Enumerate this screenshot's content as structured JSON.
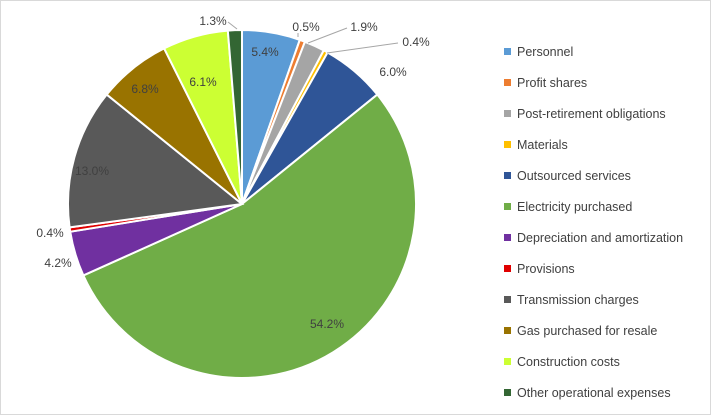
{
  "chart_data": {
    "type": "pie",
    "title": "",
    "legend_position": "right",
    "labels": [
      "Personnel",
      "Profit shares",
      "Post-retirement obligations",
      "Materials",
      "Outsourced services",
      "Electricity purchased",
      "Depreciation and amortization",
      "Provisions",
      "Transmission charges",
      "Gas purchased for resale",
      "Construction costs",
      "Other operational expenses"
    ],
    "values": [
      5.4,
      0.5,
      1.9,
      0.4,
      6.0,
      54.2,
      4.2,
      0.4,
      13.0,
      6.8,
      6.1,
      1.3
    ],
    "value_labels": [
      "5.4%",
      "0.5%",
      "1.9%",
      "0.4%",
      "6.0%",
      "54.2%",
      "4.2%",
      "0.4%",
      "13.0%",
      "6.8%",
      "6.1%",
      "1.3%"
    ],
    "colors": [
      "#5b9bd5",
      "#ed7d31",
      "#a5a5a5",
      "#ffc000",
      "#2f5597",
      "#70ad47",
      "#7030a0",
      "#e00000",
      "#595959",
      "#997300",
      "#ccff33",
      "#336633"
    ]
  }
}
